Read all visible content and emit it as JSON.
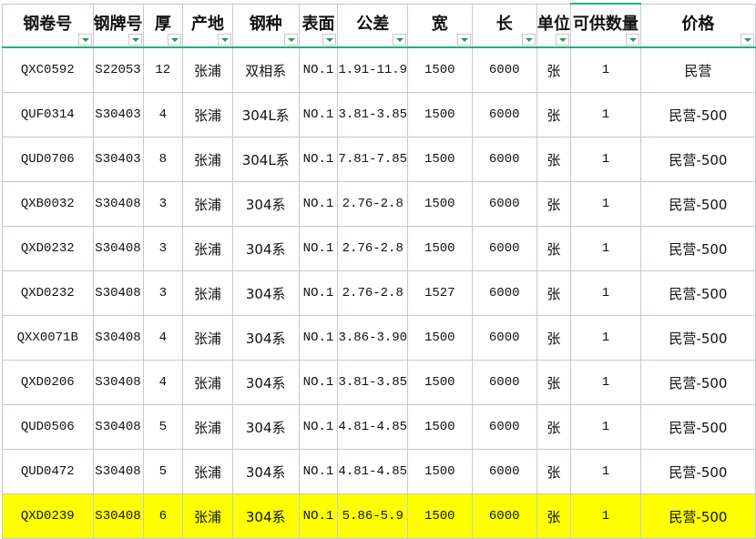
{
  "columns": [
    "钢卷号",
    "钢牌号",
    "厚",
    "产地",
    "钢种",
    "表面",
    "公差",
    "宽",
    "长",
    "单位",
    "可供数量",
    "价格"
  ],
  "selected_column": "可供数量",
  "highlight_color": "#ffff00",
  "rows": [
    [
      "QXC0592",
      "S22053",
      "12",
      "张浦",
      "双相系",
      "NO.1",
      "1.91-11.9",
      "1500",
      "6000",
      "张",
      "1",
      "民营"
    ],
    [
      "QUF0314",
      "S30403",
      "4",
      "张浦",
      "304L系",
      "NO.1",
      "3.81-3.85",
      "1500",
      "6000",
      "张",
      "1",
      "民营-500"
    ],
    [
      "QUD0706",
      "S30403",
      "8",
      "张浦",
      "304L系",
      "NO.1",
      "7.81-7.85",
      "1500",
      "6000",
      "张",
      "1",
      "民营-500"
    ],
    [
      "QXB0032",
      "S30408",
      "3",
      "张浦",
      "304系",
      "NO.1",
      "2.76-2.8",
      "1500",
      "6000",
      "张",
      "1",
      "民营-500"
    ],
    [
      "QXD0232",
      "S30408",
      "3",
      "张浦",
      "304系",
      "NO.1",
      "2.76-2.8",
      "1500",
      "6000",
      "张",
      "1",
      "民营-500"
    ],
    [
      "QXD0232",
      "S30408",
      "3",
      "张浦",
      "304系",
      "NO.1",
      "2.76-2.8",
      "1527",
      "6000",
      "张",
      "1",
      "民营-500"
    ],
    [
      "QXX0071B",
      "S30408",
      "4",
      "张浦",
      "304系",
      "NO.1",
      "3.86-3.90",
      "1500",
      "6000",
      "张",
      "1",
      "民营-500"
    ],
    [
      "QXD0206",
      "S30408",
      "4",
      "张浦",
      "304系",
      "NO.1",
      "3.81-3.85",
      "1500",
      "6000",
      "张",
      "1",
      "民营-500"
    ],
    [
      "QUD0506",
      "S30408",
      "5",
      "张浦",
      "304系",
      "NO.1",
      "4.81-4.85",
      "1500",
      "6000",
      "张",
      "1",
      "民营-500"
    ],
    [
      "QUD0472",
      "S30408",
      "5",
      "张浦",
      "304系",
      "NO.1",
      "4.81-4.85",
      "1500",
      "6000",
      "张",
      "1",
      "民营-500"
    ],
    [
      "QXD0239",
      "S30408",
      "6",
      "张浦",
      "304系",
      "NO.1",
      "5.86-5.9",
      "1500",
      "6000",
      "张",
      "1",
      "民营-500"
    ]
  ],
  "highlighted_row": 10
}
